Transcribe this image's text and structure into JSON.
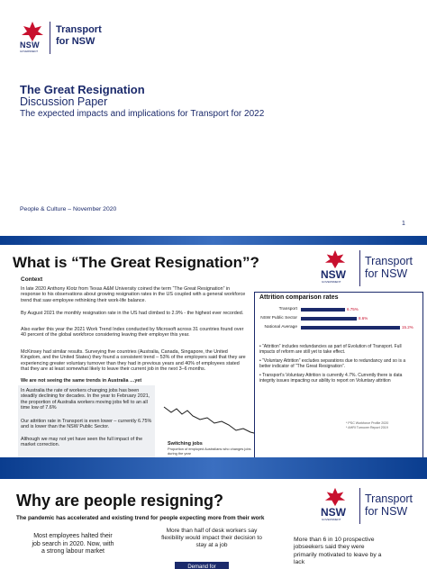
{
  "brand": {
    "nsw": "NSW",
    "government": "GOVERNMENT",
    "transport_line1": "Transport",
    "transport_line2": "for NSW",
    "red": "#c8102e",
    "navy": "#1b2a6b"
  },
  "slide1": {
    "title": "The Great Resignation",
    "subtitle": "Discussion Paper",
    "tagline": "The expected impacts and implications for Transport for 2022",
    "footer_left": "People & Culture – November 2020",
    "page_number": "1"
  },
  "slide2": {
    "title": "What is “The Great Resignation”?",
    "context_heading": "Context",
    "paragraphs": [
      "In late 2020 Anthony Klotz from Texas A&M University coined the term “The Great Resignation” in response to his observations about growing resignation rates in the US coupled with a general workforce trend that saw employee rethinking their work-life balance.",
      "By August 2021 the monthly resignation rate in the US had climbed to 2.9% - the highest ever recorded.",
      "Also earlier this year the 2021 Work Trend Index conducted by Microsoft across 31 countries found over 40 percent of the global workforce considering leaving their employer this year.",
      "McKinsey had similar results. Surveying five countries (Australia, Canada, Singapore, the United Kingdom, and the United States) they found a consistent trend – 53% of the employers said that they are experiencing greater voluntary turnover than they had in previous years and 40% of employees stated that they are at least somewhat likely to leave their current job in the next 3–6 months."
    ],
    "not_seeing": "We are not seeing the same trends in Australia …yet",
    "aus_paragraphs": [
      "In Australia the rate of workers changing jobs has been steadily declining for decades. In the year to February 2021, the proportion of Australia workers moving jobs fell to an all time low of 7.6%",
      "Our attrition rate in Transport is even lower – currently 6.75% and is lower than the NSW Public Sector.",
      "Although we may not yet have seen the full impact of the market correction."
    ],
    "switching_chart": {
      "title": "Switching jobs",
      "caption": "Proportion of employed Australians who changes jobs during the year",
      "end_label": "7.6%",
      "x_labels": [
        "1975",
        "2000",
        "2020"
      ],
      "source": "Source: ABS"
    },
    "attrition_panel": {
      "title": "Attrition comparison rates",
      "bars": [
        {
          "label": "Transport",
          "value": 6.75,
          "text": "6.75%"
        },
        {
          "label": "NSW Public Sector",
          "value": 8.6,
          "text": "8.6%"
        },
        {
          "label": "National Average",
          "value": 15.2,
          "text": "15.2%"
        }
      ],
      "notes": [
        "“Attrition” includes redundancies as part of Evolution of Transport. Full impacts of reform are still yet to take effect.",
        "“Voluntary Attrition” excludes separations due to redundancy and so is a better indicator of “The Great Resignation”.",
        "Transport’s Voluntary Attrition is currently 4.7%. Currently there is data integrity issues impacting our ability to report on Voluntary attrition"
      ],
      "sources": [
        "* PSC Workforce Profile 2020",
        "* AHRI Turnover Report 2019"
      ]
    }
  },
  "slide3": {
    "title": "Why are people resigning?",
    "subtitle": "The pandemic has accelerated and existing trend for people expecting more from their work",
    "stat1": "Most employees halted their job search in 2020. Now, with a strong labour market",
    "stat2": "More than half of desk workers say flexibility would impact their decision to stay at a job",
    "stat3": "More than 6 in 10 prospective jobseekers said they were primarily motivated to leave by a lack",
    "button": "Demand for"
  }
}
